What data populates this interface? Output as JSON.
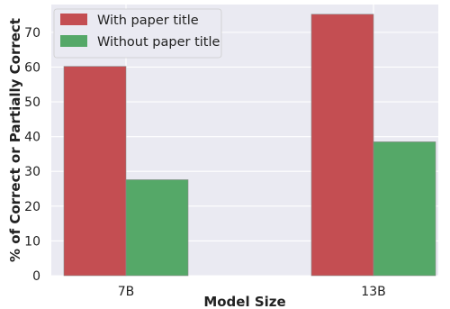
{
  "chart_data": {
    "type": "bar",
    "title": "",
    "xlabel": "Model Size",
    "ylabel": "% of Correct or Partially Correct",
    "categories": [
      "7B",
      "13B"
    ],
    "series": [
      {
        "name": "With paper title",
        "values": [
          60.2,
          75.2
        ],
        "color": "#c44e52"
      },
      {
        "name": "Without paper title",
        "values": [
          27.6,
          38.5
        ],
        "color": "#55a868"
      }
    ],
    "ylim": [
      0,
      78
    ],
    "yticks": [
      0,
      10,
      20,
      30,
      40,
      50,
      60,
      70
    ],
    "grid": true,
    "legend_position": "top-left",
    "background_color": "#eaeaf2"
  }
}
